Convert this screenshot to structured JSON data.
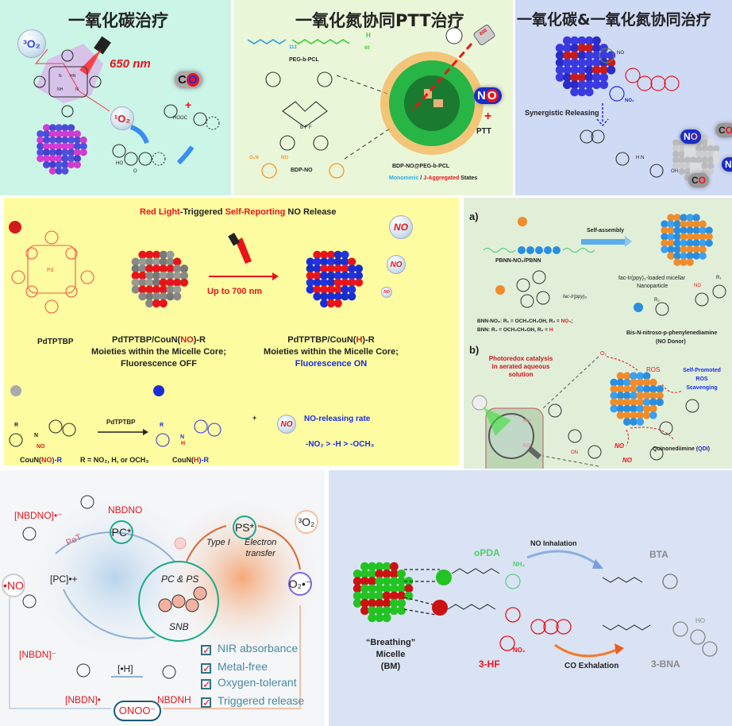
{
  "panel_co": {
    "title": "一氧化碳治疗",
    "triplet_oxygen": "³O₂",
    "singlet_oxygen": "¹O₂",
    "wavelength": "650 nm",
    "co_label": [
      "C",
      "O"
    ],
    "plus": "+",
    "atoms": {
      "nh1": "NH",
      "hn": "HN",
      "n1": "N",
      "n2": "N",
      "ho": "HO",
      "hooc": "HOOC",
      "o": "O"
    }
  },
  "panel_no_ptt": {
    "title": "一氧化氮协同PTT治疗",
    "polymer_name": "PEG-b-PCL",
    "subscript_113": "113",
    "subscript_60": "60",
    "h_end": "H",
    "dye_name": "BDP-NO",
    "bf2": "B F F",
    "no_group": "NO",
    "no2_group": "O₂N",
    "laser_label": "808",
    "no_label": [
      "N",
      "O"
    ],
    "plus": "+",
    "ptt": "PTT",
    "nanoparticle_name": "BDP-NO@PEG-b-PCL",
    "states": {
      "monomeric": "Monomeric",
      "sep": " / ",
      "aggregated": "J-Aggregated",
      "suffix": " States"
    }
  },
  "panel_co_no": {
    "title": "一氧化碳&一氧化氮协同治疗",
    "synergy": "Synergistic Releasing",
    "no_group": "NO",
    "no2_group": "NO₂",
    "oh": "OH",
    "nh": "H N",
    "co_label": [
      "C",
      "O"
    ],
    "no_label": [
      "N",
      "O"
    ]
  },
  "panel_red_light": {
    "title": {
      "part1": "Red Light",
      "part2": "-Triggered ",
      "part3": "Self-Reporting",
      "part4": " NO Release"
    },
    "photosensitizer": "PdTPTBP",
    "pd": "Pd",
    "wavelength": "Up to 700 nm",
    "off_caption": {
      "line1a": "PdTPTBP/CouN(",
      "line1b": "NO",
      "line1c": ")-R",
      "line2": "Moieties within the Micelle Core;",
      "line3": "Fluorescence OFF"
    },
    "on_caption": {
      "line1a": "PdTPTBP/CouN(",
      "line1b": "H",
      "line1c": ")-R",
      "line2": "Moieties within the Micelle Core;",
      "line3": "Fluorescence ON"
    },
    "no_bubbles": [
      "NO",
      "NO",
      "NO",
      "NO"
    ],
    "reactant": {
      "a": "CouN(",
      "b": "NO",
      "c": ")-R"
    },
    "product": {
      "a": "CouN(",
      "b": "H",
      "c": ")-R"
    },
    "r_def": "R = NO₂, H, or OCH₃",
    "catalyst": "PdTPTBP",
    "plus": "+",
    "rate_title": "NO-releasing rate",
    "rate_order": "-NO₂ > -H > -OCH₃",
    "atoms": {
      "r": "R",
      "n": "N",
      "no": "NO",
      "h": "H",
      "nh": "N"
    }
  },
  "panel_iridium": {
    "label_a": "a)",
    "label_b": "b)",
    "polymer": "PBNN-NO₂/PBNN",
    "catalyst": "fac-Ir(ppy)₃",
    "self_assembly": "Self-assembly",
    "nanoparticle": [
      "fac-Ir(ppy)₃-loaded micellar",
      "Nanoparticle"
    ],
    "bnn_no2": {
      "a": "BNN-NO₂: R₁ = OCH₂CH₂OH, R₂ = ",
      "b": "NO₂",
      "c": ";"
    },
    "bnn": {
      "a": "BNN: R₁ = OCH₂CH₂OH, R₂ = ",
      "b": "H"
    },
    "donor": [
      "Bis-N-nitroso-p-phenylenediamine",
      "(NO Donor)"
    ],
    "photoredox": [
      "Photoredox catalysis",
      "in aerated aqueous",
      "solution"
    ],
    "o2": "O₂",
    "ros": "ROS",
    "scavenging": [
      "Self-Promoted",
      "ROS",
      "Scavenging"
    ],
    "qdi": {
      "a": "Quinonediimine (",
      "b": "QDI",
      "c": ")"
    },
    "no_labels": [
      "NO",
      "NO",
      "NO",
      "NO"
    ],
    "r_labels": [
      "R₁",
      "R₂",
      "NO",
      "ON"
    ]
  },
  "panel_snb": {
    "nbdno": "NBDNO",
    "nbdno_radical": "[NBDNO]•⁻",
    "pet": "PeT",
    "pc_star": "PC*",
    "pc_radical": "[PC]•+",
    "no_radical": "•NO",
    "nbdn_anion": "[NBDN]⁻",
    "nbdn_radical": "[NBDN]•",
    "h_atom": "[•H]",
    "nbdnh": "NBDNH",
    "onoo": "ONOO⁻",
    "ps_star": "PS*",
    "type1": "Type I",
    "electron_transfer": [
      "Electron",
      "transfer"
    ],
    "triplet_oxygen": "³O₂",
    "superoxide": "O₂•⁻",
    "center_top": "PC & PS",
    "center_bottom": "SNB",
    "features": [
      "NIR absorbance",
      "Metal-free",
      "Oxygen-tolerant",
      "Triggered release"
    ],
    "check": "✓"
  },
  "panel_breathing": {
    "opda": "oPDA",
    "nh2": "NH₂",
    "no_inhalation": "NO Inhalation",
    "bta": "BTA",
    "hf": "3-HF",
    "no2": "NO₂",
    "co_exhalation": "CO Exhalation",
    "bna": "3-BNA",
    "ho": "HO",
    "micelle": [
      "“Breathing”",
      "Micelle",
      "(BM)"
    ]
  },
  "colors": {
    "panel_co_bg": "#cbf5e6",
    "panel_no_bg": "#eaf6d8",
    "panel_cono_bg": "#cfdaf5",
    "panel_yellow_bg": "#fdfca0",
    "panel_ir_bg": "#e1efd9",
    "panel_snb_bg": "#f4f6f8",
    "panel_bm_bg": "#dae3f3",
    "accent_red": "#e8141c",
    "accent_blue": "#1a2de6"
  }
}
